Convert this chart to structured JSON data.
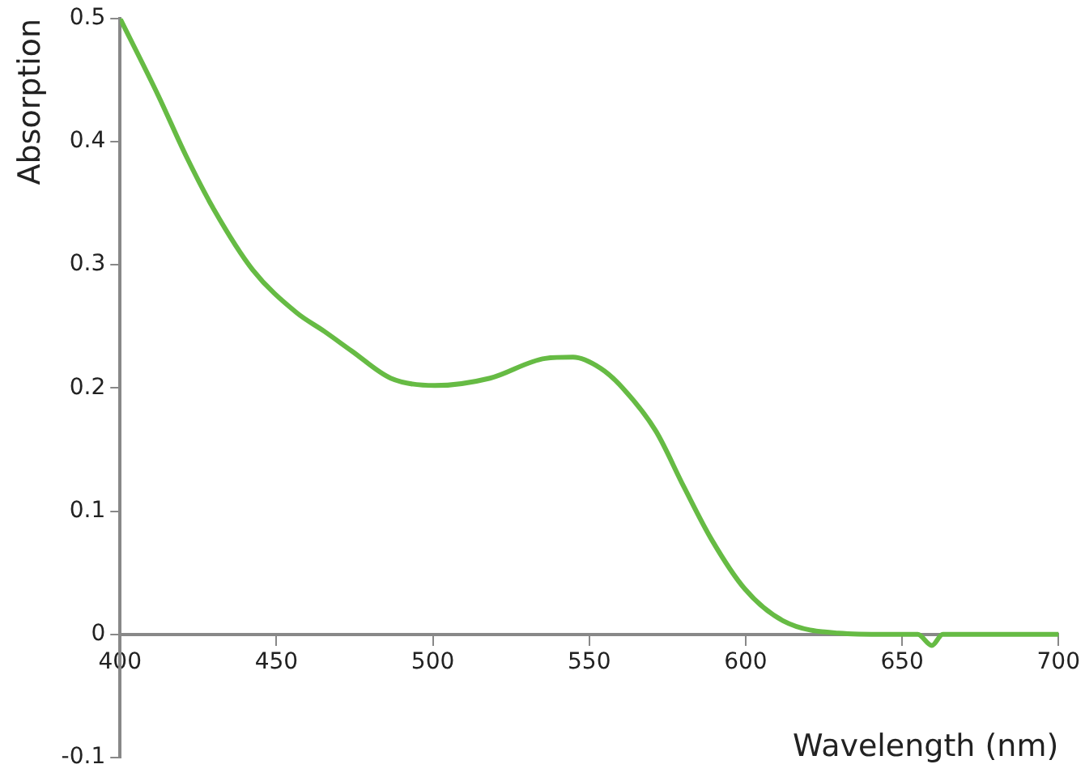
{
  "chart_data": {
    "type": "line",
    "xlabel": "Wavelength (nm)",
    "ylabel": "Absorption",
    "xlim": [
      400,
      700
    ],
    "xticks": [
      400,
      450,
      500,
      550,
      600,
      650,
      700
    ],
    "ylim": [
      -0.1,
      0.5
    ],
    "yticks": [
      -0.1,
      0,
      0.1,
      0.2,
      0.3,
      0.4,
      0.5
    ],
    "grid": false,
    "legend": false,
    "marker": "none",
    "line_style": "solid",
    "series": [
      {
        "color": "#66bb44",
        "x": [
          400,
          412.3,
          421,
          430,
          442.4,
          456.5,
          465.3,
          474.1,
          486.5,
          500.6,
          518.3,
          535.9,
          544.8,
          553.6,
          560.7,
          571.3,
          580.2,
          589.1,
          599.7,
          612,
          629.7,
          645,
          655,
          659.5,
          663,
          680,
          700
        ],
        "values": [
          0.5,
          0.437,
          0.389,
          0.345,
          0.296,
          0.261,
          0.246,
          0.23,
          0.208,
          0.202,
          0.208,
          0.224,
          0.225,
          0.216,
          0.2,
          0.165,
          0.12,
          0.077,
          0.037,
          0.011,
          0.001,
          0,
          0,
          -0.009,
          0,
          0,
          0
        ]
      }
    ]
  }
}
